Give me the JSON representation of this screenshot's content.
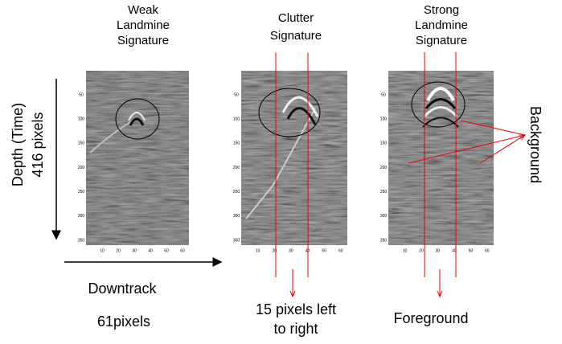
{
  "panels": [
    {
      "title": [
        "Weak",
        "Landmine",
        "Signature"
      ]
    },
    {
      "title": [
        "Clutter",
        "Signature"
      ]
    },
    {
      "title": [
        "Strong",
        "Landmine",
        "Signature"
      ]
    }
  ],
  "x_tick_labels": [
    "10",
    "20",
    "30",
    "40",
    "50",
    "60"
  ],
  "y_tick_labels": [
    "50",
    "100",
    "150",
    "200",
    "250",
    "300",
    "350"
  ],
  "depth_label": [
    "Depth (Time)",
    "416 pixels"
  ],
  "downtrack_label": "Downtrack",
  "downtrack_size": "61pixels",
  "window_label": [
    "15 pixels left",
    "to right"
  ],
  "foreground_label": "Foreground",
  "background_label": "Background"
}
